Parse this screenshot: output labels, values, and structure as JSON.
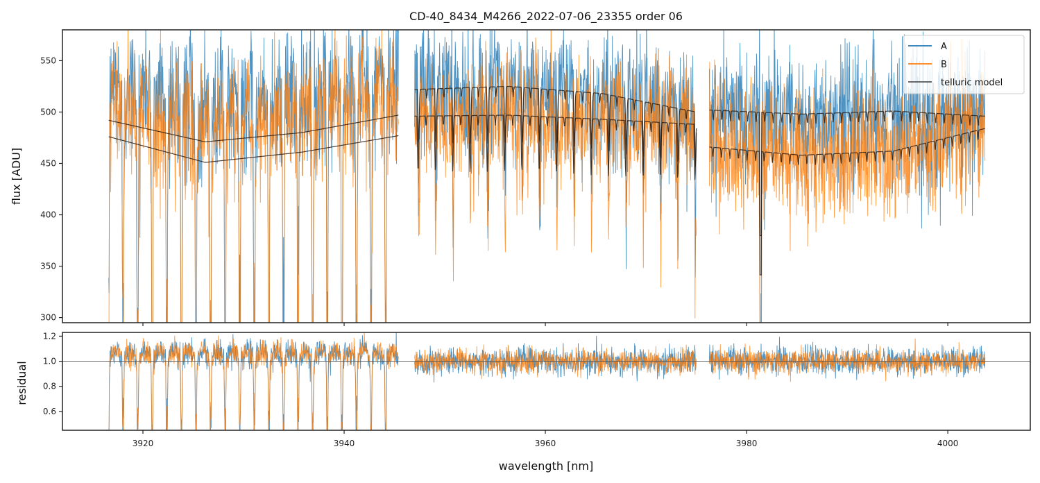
{
  "chart_data": [
    {
      "type": "line",
      "title": "CD-40_8434_M4266_2022-07-06_23355  order 06",
      "xlabel": "",
      "ylabel": "flux [ADU]",
      "xlim": [
        3912.0,
        4008.2
      ],
      "ylim": [
        295,
        580
      ],
      "yticks": [
        300,
        350,
        400,
        450,
        500,
        550
      ],
      "ytick_labels": [
        "300",
        "350",
        "400",
        "450",
        "500",
        "550"
      ],
      "xticks": [
        3920,
        3940,
        3960,
        3980,
        4000
      ],
      "legend": {
        "placement": "top-right",
        "entries": [
          {
            "label": "A",
            "color": "#1f77b4"
          },
          {
            "label": "B",
            "color": "#ff7f0e"
          },
          {
            "label": "telluric model",
            "color": "#333333"
          }
        ]
      },
      "segments": [
        {
          "x_start": 3916.6,
          "x_end": 3945.4
        },
        {
          "x_start": 3947.0,
          "x_end": 3975.0
        },
        {
          "x_start": 3976.3,
          "x_end": 4003.7
        }
      ],
      "series": [
        {
          "name": "A",
          "color": "#1f77b4",
          "continuum_upper": [
            492,
            472,
            498
          ],
          "noise_amplitude": 60
        },
        {
          "name": "B",
          "color": "#ff7f0e",
          "continuum_upper": [
            476,
            452,
            478
          ],
          "noise_amplitude": 55
        },
        {
          "name": "telluric model",
          "color": "#333333",
          "segment_1_upper": [
            492,
            471,
            480,
            497
          ],
          "segment_1_lower": [
            476,
            451,
            461,
            477
          ],
          "segment_2_upper": [
            522,
            525,
            518,
            500
          ],
          "segment_2_lower": [
            496,
            497,
            493,
            488
          ],
          "segment_3_upper": [
            502,
            498,
            501,
            496
          ],
          "segment_3_lower": [
            466,
            458,
            462,
            484
          ]
        }
      ]
    },
    {
      "type": "line",
      "title": "",
      "xlabel": "wavelength [nm]",
      "ylabel": "residual",
      "xlim": [
        3912.0,
        4008.2
      ],
      "ylim": [
        0.45,
        1.23
      ],
      "yticks": [
        0.6,
        0.8,
        1.0,
        1.2
      ],
      "ytick_labels": [
        "0.6",
        "0.8",
        "1.0",
        "1.2"
      ],
      "xticks": [
        3920,
        3940,
        3960,
        3980,
        4000
      ],
      "xtick_labels": [
        "3920",
        "3940",
        "3960",
        "3980",
        "4000"
      ],
      "reference_line": 1.0,
      "series": [
        {
          "name": "A",
          "color": "#1f77b4",
          "center": 1.0,
          "noise_amplitude": 0.09
        },
        {
          "name": "B",
          "color": "#ff7f0e",
          "center": 1.0,
          "noise_amplitude": 0.08
        }
      ]
    }
  ]
}
